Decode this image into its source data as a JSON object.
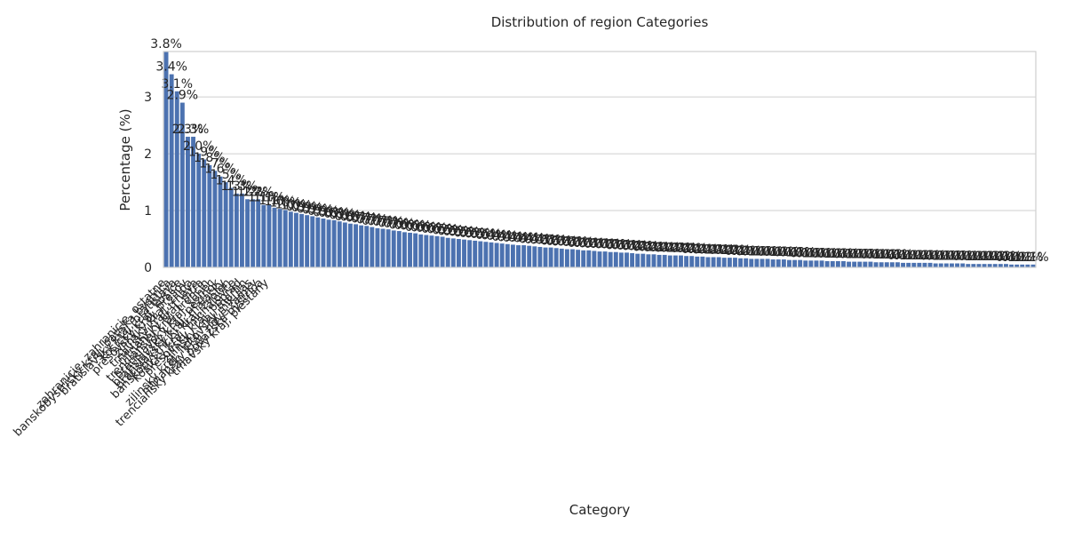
{
  "chart_data": {
    "type": "bar",
    "title": "Distribution of region Categories",
    "xlabel": "Category",
    "ylabel": "Percentage (%)",
    "ylim": [
      0,
      3.8
    ],
    "yticks": [
      0,
      1,
      2,
      3
    ],
    "grid": true,
    "bar_color": "#4c72b0",
    "categories": [
      "zahranicie, zahranicie, ostatne",
      "banskobystricky kraj, banska bystrica",
      "bratislavsky kraj, bratislava",
      "kosicky kraj, kosice",
      "presovsky kraj, presov",
      "zilinsky kraj, zilina",
      "trnavsky kraj, trnava",
      "nitriansky kraj, nitra",
      "trenciansky kraj, trencin",
      "bratislavsky kraj, senec",
      "bratislavsky kraj, pezinok",
      "bratislavsky kraj, malacky",
      "banskobystricky kraj, zvolen",
      "kosicky kraj, michalovce",
      "presovsky kraj, poprad",
      "zilinsky kraj, martin",
      "zilinsky kraj, liptovsky mikulas",
      "nitriansky kraj, nove zamky",
      "trenciansky kraj, povazska bystrica",
      "trnavsky kraj, piestany"
    ],
    "values": [
      3.8,
      3.4,
      3.1,
      2.9,
      2.3,
      2.3,
      2.0,
      1.9,
      1.8,
      1.7,
      1.6,
      1.5,
      1.4,
      1.3,
      1.3,
      1.2,
      1.2,
      1.2,
      1.1,
      1.1
    ],
    "tail_categories_count": 141,
    "tail_start": 1.05,
    "tail_end": 0.05
  }
}
